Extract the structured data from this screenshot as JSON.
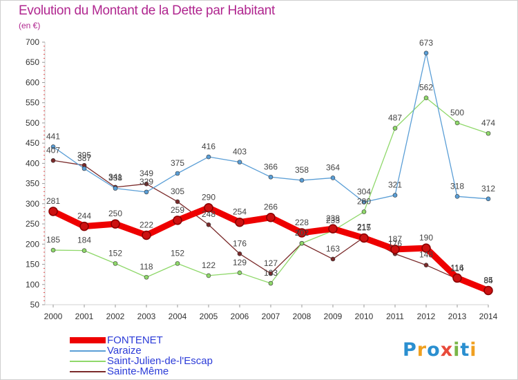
{
  "header": {
    "title": "Evolution du Montant de la Dette par Habitant",
    "unit": "(en €)"
  },
  "brand": {
    "letters": [
      "P",
      "r",
      "o",
      "x",
      "i",
      "t",
      "i"
    ],
    "colors": [
      "#2a8fd0",
      "#f0a020",
      "#2a8fd0",
      "#e84a3a",
      "#7ab648",
      "#2a8fd0",
      "#f0a020"
    ]
  },
  "chart_data": {
    "type": "line",
    "title": "Evolution du Montant de la Dette par Habitant",
    "ylabel": "(en €)",
    "xlabel": "",
    "categories": [
      "2000",
      "2001",
      "2002",
      "2003",
      "2004",
      "2005",
      "2006",
      "2007",
      "2008",
      "2009",
      "2010",
      "2011",
      "2012",
      "2013",
      "2014"
    ],
    "y_ticks": [
      50,
      100,
      150,
      200,
      250,
      300,
      350,
      400,
      450,
      500,
      550,
      600,
      650,
      700
    ],
    "ylim": [
      50,
      700
    ],
    "grid": false,
    "legend_position": "bottom-left",
    "series": [
      {
        "name": "Sainte-Même",
        "color": "#7a2a2a",
        "values": [
          407,
          395,
          341,
          349,
          305,
          248,
          176,
          127,
          202,
          163,
          217,
          176,
          148,
          114,
          84
        ]
      },
      {
        "name": "Saint-Julien-de-l'Escap",
        "color": "#8fd86a",
        "values": [
          185,
          184,
          152,
          118,
          152,
          122,
          129,
          103,
          202,
          233,
          280,
          487,
          562,
          500,
          474
        ]
      },
      {
        "name": "Varaize",
        "color": "#5a9ed6",
        "values": [
          441,
          387,
          338,
          329,
          375,
          416,
          403,
          366,
          358,
          364,
          304,
          321,
          673,
          318,
          312
        ]
      },
      {
        "name": "FONTENET",
        "color": "#ee0000",
        "values": [
          281,
          244,
          250,
          222,
          259,
          290,
          254,
          266,
          228,
          238,
          215,
          187,
          190,
          116,
          85
        ]
      }
    ],
    "legend_order": [
      "FONTENET",
      "Varaize",
      "Saint-Julien-de-l'Escap",
      "Sainte-Même"
    ]
  }
}
